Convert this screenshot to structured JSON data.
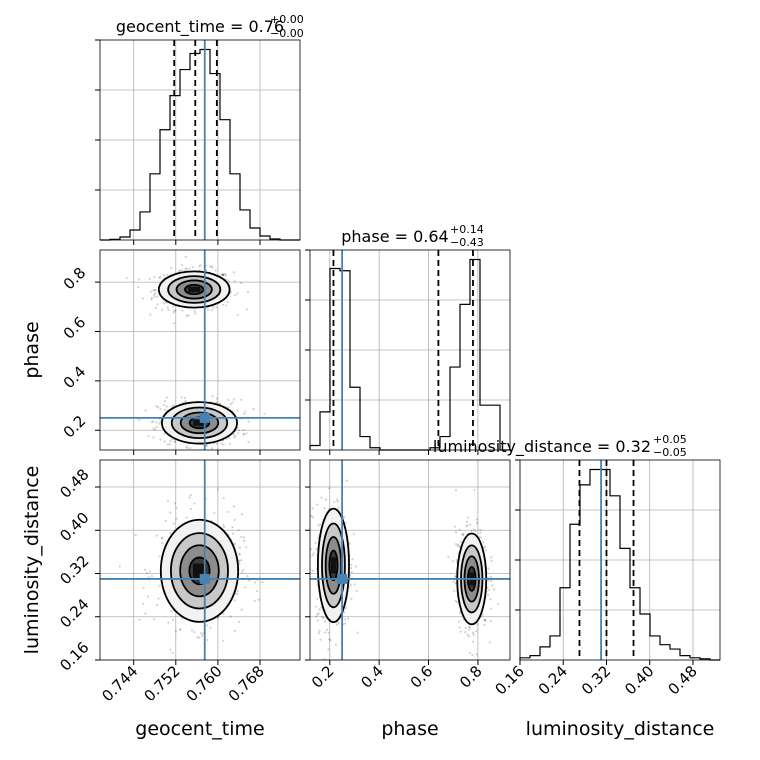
{
  "chart_data": {
    "type": "corner",
    "parameters": [
      "geocent_time",
      "phase",
      "luminosity_distance"
    ],
    "axis_labels": {
      "x": [
        "geocent_time",
        "phase",
        "luminosity_distance"
      ],
      "y": [
        "phase",
        "luminosity_distance"
      ]
    },
    "titles": [
      {
        "name": "geocent_time",
        "value": "0.76",
        "plus": "+0.00",
        "minus": "−0.00"
      },
      {
        "name": "phase",
        "value": "0.64",
        "plus": "+0.14",
        "minus": "−0.43"
      },
      {
        "name": "luminosity_distance",
        "value": "0.32",
        "plus": "+0.05",
        "minus": "−0.05"
      }
    ],
    "ranges": {
      "geocent_time": [
        0.7376,
        0.7756
      ],
      "phase": [
        0.12,
        0.93
      ],
      "luminosity_distance": [
        0.16,
        0.53
      ]
    },
    "ticks": {
      "geocent_time": [
        "0.744",
        "0.752",
        "0.760",
        "0.768"
      ],
      "phase_x": [
        "0.2",
        "0.4",
        "0.6",
        "0.8"
      ],
      "phase_y": [
        "0.2",
        "0.4",
        "0.6",
        "0.8"
      ],
      "luminosity_distance_x": [
        "0.16",
        "0.24",
        "0.32",
        "0.40",
        "0.48"
      ],
      "luminosity_distance_y": [
        "0.16",
        "0.24",
        "0.32",
        "0.40",
        "0.48"
      ]
    },
    "truths": {
      "geocent_time": 0.7575,
      "phase": 0.25,
      "luminosity_distance": 0.31
    },
    "quantiles": {
      "geocent_time": [
        0.7517,
        0.7557,
        0.7598
      ],
      "phase": [
        0.215,
        0.64,
        0.78
      ],
      "luminosity_distance": [
        0.27,
        0.32,
        0.37
      ]
    },
    "histograms": {
      "geocent_time": {
        "edges": [
          0.7376,
          0.7395,
          0.7414,
          0.7433,
          0.7452,
          0.7471,
          0.749,
          0.7509,
          0.7528,
          0.7547,
          0.7566,
          0.7585,
          0.7604,
          0.7623,
          0.7642,
          0.7661,
          0.768,
          0.7699,
          0.7718,
          0.7737,
          0.7756
        ],
        "counts": [
          0,
          0.3,
          1.5,
          5,
          14,
          33,
          55,
          72,
          85,
          93,
          95,
          83,
          60,
          33,
          15,
          6,
          2,
          0.5,
          0,
          0
        ]
      },
      "phase": {
        "edges": [
          0.12,
          0.1605,
          0.201,
          0.2415,
          0.282,
          0.3225,
          0.363,
          0.4035,
          0.444,
          0.4845,
          0.525,
          0.5655,
          0.606,
          0.6465,
          0.687,
          0.7275,
          0.768,
          0.8085,
          0.8895,
          0.93
        ],
        "counts": [
          2,
          17,
          81,
          80,
          28,
          6,
          1,
          0,
          0,
          0,
          0,
          0,
          1,
          6,
          37,
          65,
          85,
          20,
          0
        ]
      },
      "luminosity_distance": {
        "edges": [
          0.16,
          0.1785,
          0.197,
          0.2155,
          0.234,
          0.2525,
          0.271,
          0.2895,
          0.308,
          0.3265,
          0.345,
          0.3635,
          0.382,
          0.4005,
          0.419,
          0.4375,
          0.456,
          0.4745,
          0.493,
          0.5115,
          0.53
        ],
        "counts": [
          1,
          2,
          6,
          11,
          33,
          62,
          80,
          87,
          87,
          75,
          51,
          33,
          21,
          11,
          7,
          5,
          2,
          1,
          0.5,
          0
        ]
      }
    },
    "blobs": {
      "geocent_time_vs_phase": [
        {
          "cx": 0.7555,
          "cy": 0.77,
          "sx": 0.0032,
          "sy": 0.035
        },
        {
          "cx": 0.7565,
          "cy": 0.23,
          "sx": 0.0034,
          "sy": 0.04
        }
      ],
      "geocent_time_vs_luminosity_distance": [
        {
          "cx": 0.7565,
          "cy": 0.325,
          "sx": 0.0035,
          "sy": 0.045
        }
      ],
      "phase_vs_luminosity_distance": [
        {
          "cx": 0.215,
          "cy": 0.335,
          "sx": 0.03,
          "sy": 0.05
        },
        {
          "cx": 0.775,
          "cy": 0.31,
          "sx": 0.028,
          "sy": 0.04
        }
      ]
    },
    "truth_color": "#4682b4",
    "grid": true
  }
}
